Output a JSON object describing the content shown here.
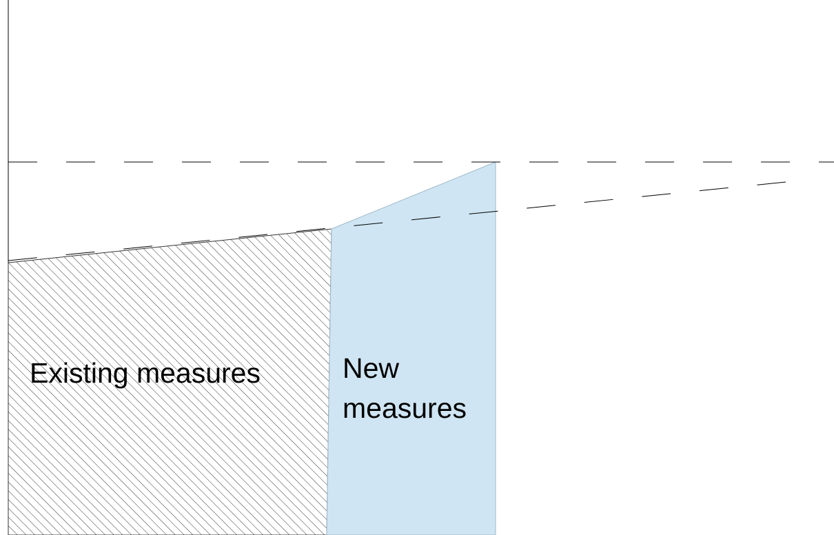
{
  "labels": {
    "existing": "Existing measures",
    "new_line1": "New",
    "new_line2": "measures"
  },
  "colors": {
    "new_fill": "#cfe5f3",
    "new_stroke": "#9eb8c8",
    "hatch": "#333333",
    "lines": "#000000"
  }
}
